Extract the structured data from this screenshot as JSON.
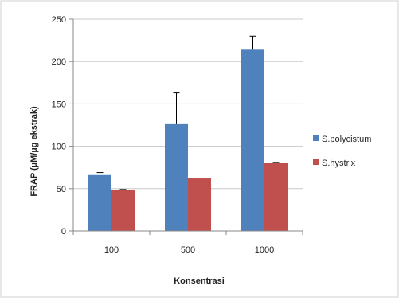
{
  "chart_data": {
    "type": "bar",
    "title": "",
    "xlabel": "Konsentrasi",
    "ylabel": "FRAP (µM/µg ekstrak)",
    "categories": [
      "100",
      "500",
      "1000"
    ],
    "ylim": [
      0,
      250
    ],
    "yticks": [
      0,
      50,
      100,
      150,
      200,
      250
    ],
    "grid": true,
    "legend_position": "right",
    "series": [
      {
        "name": "S.polycistum",
        "color": "#4f81bd",
        "values": [
          66,
          127,
          214
        ],
        "error": [
          3,
          36,
          16
        ]
      },
      {
        "name": "S.hystrix",
        "color": "#c0504d",
        "values": [
          48,
          62,
          80
        ],
        "error": [
          1,
          0,
          1
        ]
      }
    ]
  }
}
